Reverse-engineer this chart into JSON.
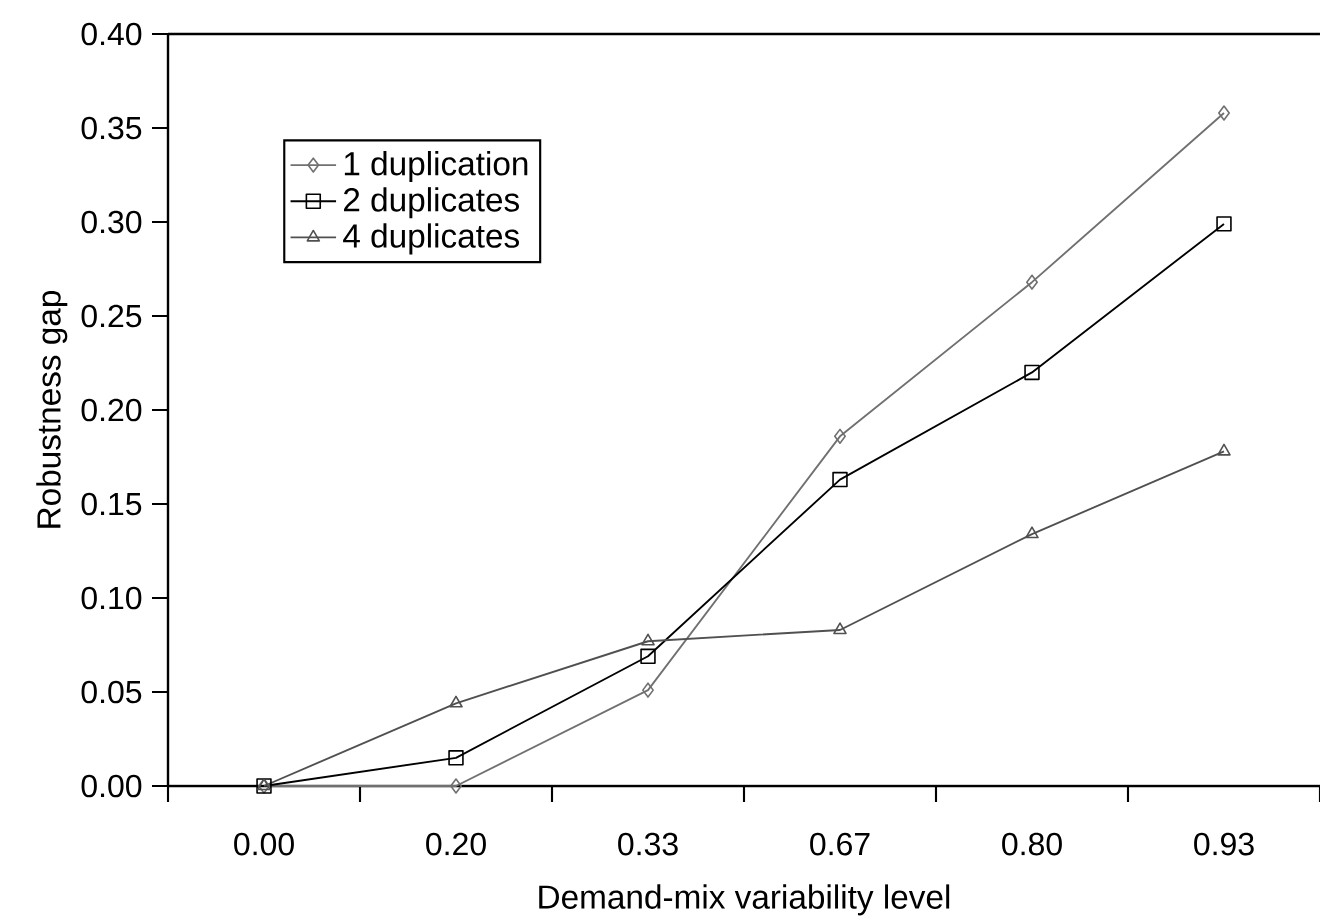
{
  "chart_data": {
    "type": "line",
    "xlabel": "Demand-mix variability level",
    "ylabel": "Robustness gap",
    "categories": [
      "0.00",
      "0.20",
      "0.33",
      "0.67",
      "0.80",
      "0.93"
    ],
    "ylim": [
      0,
      0.4
    ],
    "yticks": [
      {
        "value": 0,
        "label": "0.00"
      },
      {
        "value": 0.05,
        "label": "0.05"
      },
      {
        "value": 0.1,
        "label": "0.10"
      },
      {
        "value": 0.15,
        "label": "0.15"
      },
      {
        "value": 0.2,
        "label": "0.20"
      },
      {
        "value": 0.25,
        "label": "0.25"
      },
      {
        "value": 0.3,
        "label": "0.30"
      },
      {
        "value": 0.35,
        "label": "0.35"
      },
      {
        "value": 0.4,
        "label": "0.40"
      }
    ],
    "grid": false,
    "legend": "top left",
    "line_style": "solid",
    "series": [
      {
        "name": "1   duplication",
        "color": "#707070",
        "marker": "diamond",
        "values": [
          0,
          0,
          0.051,
          0.186,
          0.268,
          0.358
        ]
      },
      {
        "name": "2   duplicates",
        "color": "#000000",
        "marker": "square",
        "values": [
          0,
          0.015,
          0.069,
          0.163,
          0.22,
          0.299
        ]
      },
      {
        "name": "4   duplicates",
        "color": "#505050",
        "marker": "triangle",
        "values": [
          0,
          0.044,
          0.077,
          0.083,
          0.134,
          0.178
        ]
      }
    ]
  }
}
